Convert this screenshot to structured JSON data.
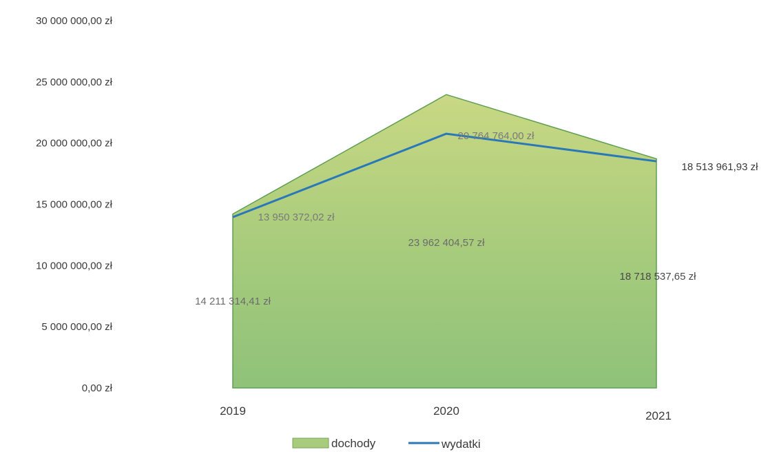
{
  "chart_data": {
    "type": "area",
    "categories": [
      "2019",
      "2020",
      "2021"
    ],
    "y_ticks": [
      "0,00 zł",
      "5 000 000,00 zł",
      "10 000 000,00 zł",
      "15 000 000,00 zł",
      "20 000 000,00 zł",
      "25 000 000,00 zł",
      "30 000 000,00 zł"
    ],
    "ylim": [
      0,
      30000000
    ],
    "grid": false,
    "legend_position": "bottom",
    "series": [
      {
        "name": "dochody",
        "kind": "area",
        "color": "#a8cc78",
        "values": [
          14211314.41,
          23962404.57,
          18718537.65
        ],
        "labels": [
          "14 211 314,41 zł",
          "23 962 404,57 zł",
          "18 718 537,65 zł"
        ]
      },
      {
        "name": "wydatki",
        "kind": "line",
        "color": "#2a78b8",
        "values": [
          13950372.02,
          20764764.0,
          18513961.93
        ],
        "labels": [
          "13 950 372,02 zł",
          "20 764 764,00 zł",
          "18 513 961,93 zł"
        ]
      }
    ]
  }
}
